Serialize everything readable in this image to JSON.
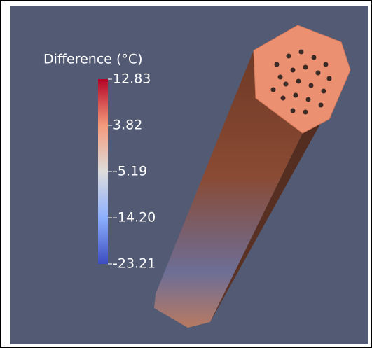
{
  "colorbar": {
    "title": "Difference (°C)",
    "range": [
      -23.21,
      12.83
    ],
    "ticks": [
      12.83,
      3.82,
      -5.19,
      {
        "value": -14.2,
        "label": "-14.20"
      },
      -23.21
    ]
  }
}
